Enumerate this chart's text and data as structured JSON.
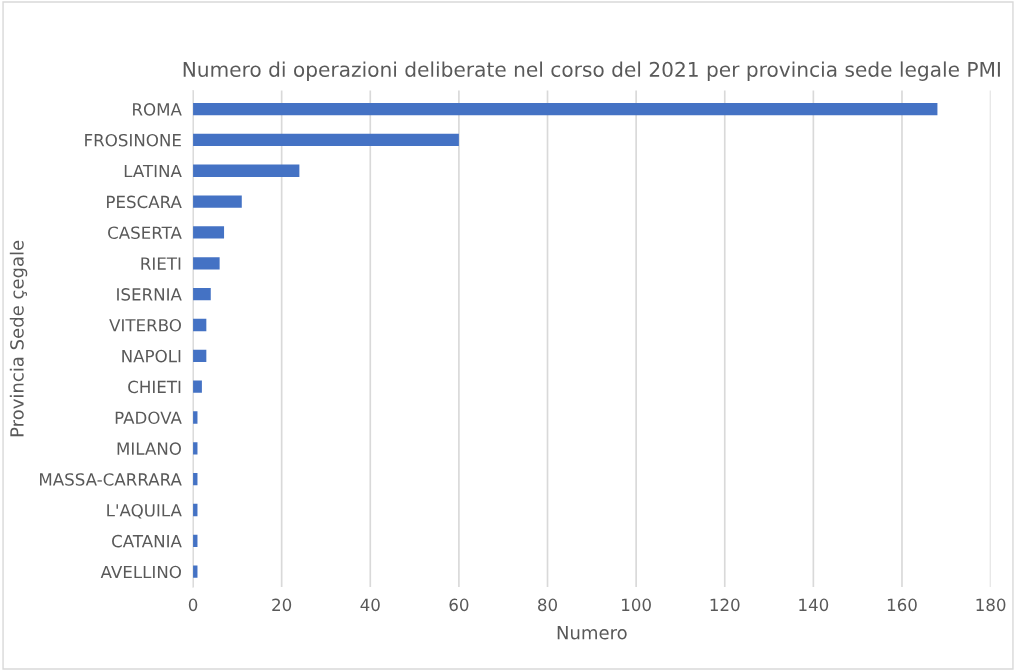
{
  "chart_data": {
    "type": "bar",
    "orientation": "horizontal",
    "title": "Numero di operazioni deliberate nel corso del 2021 per provincia sede legale PMI",
    "xlabel": "Numero",
    "ylabel": "Provincia Sede çegale",
    "categories": [
      "ROMA",
      "FROSINONE",
      "LATINA",
      "PESCARA",
      "CASERTA",
      "RIETI",
      "ISERNIA",
      "VITERBO",
      "NAPOLI",
      "CHIETI",
      "PADOVA",
      "MILANO",
      "MASSA-CARRARA",
      "L'AQUILA",
      "CATANIA",
      "AVELLINO"
    ],
    "values": [
      168,
      60,
      24,
      11,
      7,
      6,
      4,
      3,
      3,
      2,
      1,
      1,
      1,
      1,
      1,
      1
    ],
    "color": "#4472c4",
    "xlim": [
      0,
      180
    ],
    "xticks": [
      0,
      20,
      40,
      60,
      80,
      100,
      120,
      140,
      160,
      180
    ],
    "grid": "x"
  }
}
